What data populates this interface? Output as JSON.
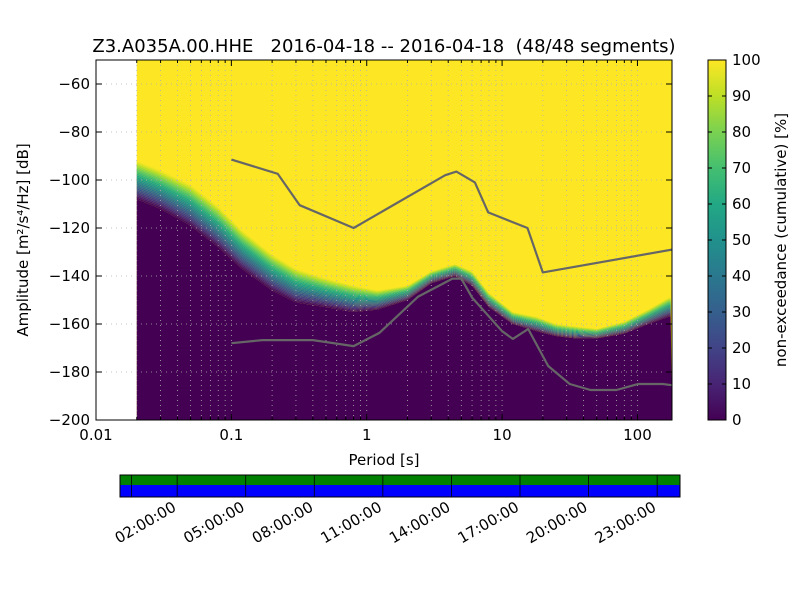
{
  "chart_data": {
    "type": "heatmap",
    "title": "Z3.A035A.00.HHE   2016-04-18 -- 2016-04-18  (48/48 segments)",
    "xlabel": "Period [s]",
    "ylabel": "Amplitude [m²/s⁴/Hz] [dB]",
    "x_scale": "log",
    "xlim": [
      0.01,
      180
    ],
    "ylim": [
      -200,
      -50
    ],
    "x_ticks": [
      {
        "value": 0.01,
        "label": "0.01"
      },
      {
        "value": 0.1,
        "label": "0.1"
      },
      {
        "value": 1,
        "label": "1"
      },
      {
        "value": 10,
        "label": "10"
      },
      {
        "value": 100,
        "label": "100"
      }
    ],
    "y_ticks": [
      {
        "value": -60,
        "label": "−60"
      },
      {
        "value": -80,
        "label": "−80"
      },
      {
        "value": -100,
        "label": "−100"
      },
      {
        "value": -120,
        "label": "−120"
      },
      {
        "value": -140,
        "label": "−140"
      },
      {
        "value": -160,
        "label": "−160"
      },
      {
        "value": -180,
        "label": "−180"
      },
      {
        "value": -200,
        "label": "−200"
      }
    ],
    "grid": true,
    "data_period_start": 0.02,
    "transition_curve": {
      "description_of_values": "approximate lower edge (dB) of the 100% (yellow) zone versus period",
      "period": [
        0.02,
        0.03,
        0.05,
        0.08,
        0.12,
        0.2,
        0.3,
        0.5,
        0.8,
        1.2,
        2,
        3,
        4.5,
        6,
        8,
        12,
        18,
        25,
        35,
        50,
        80,
        120,
        170
      ],
      "upper_db": [
        -92,
        -96,
        -102,
        -111,
        -121,
        -131,
        -137,
        -141,
        -144,
        -146,
        -144,
        -138,
        -135,
        -138,
        -147,
        -155,
        -157,
        -160,
        -161,
        -162,
        -159,
        -154,
        -149
      ],
      "lower_db": [
        -108,
        -112,
        -119,
        -128,
        -137,
        -146,
        -151,
        -153,
        -155,
        -154,
        -150,
        -143,
        -140,
        -144,
        -153,
        -160,
        -163,
        -165,
        -166,
        -166,
        -164,
        -160,
        -157
      ]
    },
    "noise_models": [
      {
        "name_role": "high-noise-model",
        "period": [
          0.1,
          0.22,
          0.32,
          0.8,
          3.8,
          4.6,
          6.3,
          7.9,
          15.4,
          20,
          180
        ],
        "db": [
          -91.5,
          -97.4,
          -110.5,
          -120,
          -98,
          -96.5,
          -101,
          -113.5,
          -120,
          -138.5,
          -129
        ]
      },
      {
        "name_role": "low-noise-model",
        "period": [
          0.1,
          0.17,
          0.4,
          0.8,
          1.24,
          2.4,
          4.3,
          5,
          6,
          10,
          12,
          15.6,
          21.9,
          31.6,
          45,
          70,
          101,
          154,
          180
        ],
        "db": [
          -168,
          -166.7,
          -166.7,
          -169.2,
          -163.7,
          -148.6,
          -141.1,
          -141.1,
          -149,
          -163,
          -166.2,
          -162.1,
          -177.5,
          -185,
          -187.5,
          -187.5,
          -185,
          -185,
          -185.5
        ]
      }
    ],
    "colorbar": {
      "label": "non-exceedance (cumulative) [%]",
      "range": [
        0,
        100
      ],
      "ticks": [
        "0",
        "10",
        "20",
        "30",
        "40",
        "50",
        "60",
        "70",
        "80",
        "90",
        "100"
      ],
      "colors": [
        "#440154",
        "#482475",
        "#414487",
        "#355f8d",
        "#2a788e",
        "#21918c",
        "#22a884",
        "#44bf70",
        "#7ad151",
        "#bddf26",
        "#fde725"
      ]
    },
    "coverage": {
      "time_ticks": [
        "02:00:00",
        "05:00:00",
        "08:00:00",
        "11:00:00",
        "14:00:00",
        "17:00:00",
        "20:00:00",
        "23:00:00"
      ],
      "data_color": "#008000",
      "psd_color": "#0000ff"
    },
    "style": {
      "curve_color": "#666666"
    }
  }
}
